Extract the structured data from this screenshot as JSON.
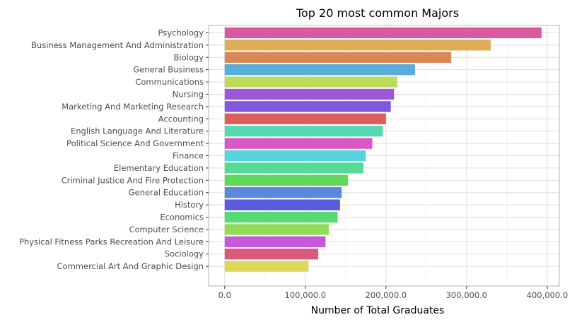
{
  "chart_data": {
    "type": "bar",
    "orientation": "horizontal",
    "title": "Top 20 most common Majors",
    "xlabel": "Number of Total Graduates",
    "ylabel": "",
    "xlim": [
      -20000,
      415000
    ],
    "xticks": [
      0,
      100000,
      200000,
      300000,
      400000
    ],
    "xtick_labels": [
      "0.0",
      "100,000.0",
      "200,000.0",
      "300,000.0",
      "400,000.0"
    ],
    "grid": true,
    "legend": "none",
    "categories": [
      "Psychology",
      "Business Management And Administration",
      "Biology",
      "General Business",
      "Communications",
      "Nursing",
      "Marketing And Marketing Research",
      "Accounting",
      "English Language And Literature",
      "Political Science And Government",
      "Finance",
      "Elementary Education",
      "Criminal Justice And Fire Protection",
      "General Education",
      "History",
      "Economics",
      "Computer Science",
      "Physical Fitness Parks Recreation And Leisure",
      "Sociology",
      "Commercial Art And Graphic Design"
    ],
    "values": [
      393000,
      330000,
      281000,
      236000,
      214000,
      210000,
      206000,
      200000,
      196000,
      183000,
      175000,
      172000,
      153000,
      145000,
      143000,
      140000,
      129000,
      125000,
      116000,
      104000
    ],
    "colors": [
      "#d95a9f",
      "#ddad57",
      "#d98757",
      "#5aacdc",
      "#bcdb5b",
      "#9e57d9",
      "#7f59d9",
      "#dc5d5b",
      "#57d9b3",
      "#d957c3",
      "#57d3dc",
      "#57d997",
      "#60d95a",
      "#5a88dc",
      "#5a5adc",
      "#59d971",
      "#93dc5b",
      "#c757dc",
      "#d95a7a",
      "#dcd95a"
    ]
  }
}
